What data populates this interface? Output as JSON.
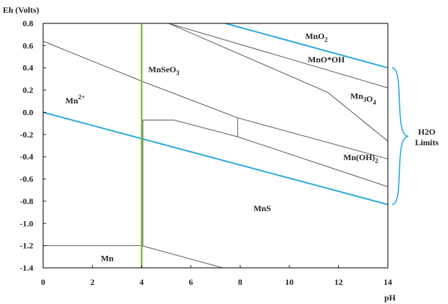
{
  "chart_data": {
    "type": "line",
    "title": "",
    "xlabel": "pH",
    "ylabel": "Eh (Volts)",
    "xlim": [
      0,
      14
    ],
    "ylim": [
      -1.4,
      0.8
    ],
    "x_ticks": [
      0,
      2,
      4,
      6,
      8,
      10,
      12,
      14
    ],
    "x_tick_labels": [
      "0",
      "2",
      "4",
      "6",
      "8",
      "10",
      "12",
      "14"
    ],
    "y_ticks": [
      0.8,
      0.6,
      0.4,
      0.2,
      0.0,
      -0.2,
      -0.4,
      -0.6,
      -0.8,
      -1.0,
      -1.2,
      -1.4
    ],
    "y_tick_labels": [
      "0.8",
      "0.6",
      "0.4",
      "0.2",
      "0.0",
      "-0.2",
      "-0.4",
      "-0.6",
      "-0.8",
      "-1.0",
      "-1.2",
      "-1.4"
    ],
    "grid": false,
    "colors": {
      "boundary": "#555555",
      "water_limit": "#29a8dc",
      "ph4_line": "#7cc242",
      "text": "#222222"
    },
    "water_limits": [
      {
        "x": [
          0,
          14
        ],
        "y": [
          0.0,
          -0.83
        ]
      },
      {
        "x": [
          7.4,
          14
        ],
        "y": [
          0.8,
          0.4
        ]
      }
    ],
    "vertical_marker": {
      "x": 4
    },
    "brace_label": [
      "H2O",
      "Limits"
    ],
    "boundaries": [
      {
        "x": [
          0,
          4,
          7.9,
          14
        ],
        "y": [
          0.64,
          0.28,
          -0.05,
          -0.42
        ]
      },
      {
        "x": [
          5.1,
          14
        ],
        "y": [
          0.8,
          0.22
        ]
      },
      {
        "x": [
          5.1,
          11.55,
          14
        ],
        "y": [
          0.8,
          0.18,
          -0.26
        ]
      },
      {
        "x": [
          4.05,
          5.3,
          7.9,
          14
        ],
        "y": [
          -0.07,
          -0.07,
          -0.22,
          -0.67
        ]
      },
      {
        "x": [
          7.9,
          7.9
        ],
        "y": [
          -0.05,
          -0.22
        ]
      },
      {
        "x": [
          4.05,
          4.05
        ],
        "y": [
          -0.07,
          -1.2
        ]
      },
      {
        "x": [
          0,
          4
        ],
        "y": [
          -1.2,
          -1.2
        ]
      },
      {
        "x": [
          4,
          7.3
        ],
        "y": [
          -1.2,
          -1.4
        ]
      }
    ],
    "region_labels": [
      {
        "text": "MnO",
        "sub": "2",
        "sup": "",
        "tail": "",
        "x": 11.1,
        "y": 0.66
      },
      {
        "text": "MnO*OH",
        "sub": "",
        "sup": "",
        "tail": "",
        "x": 11.5,
        "y": 0.45
      },
      {
        "text": "MnSeO",
        "sub": "3",
        "sup": "",
        "tail": "",
        "x": 4.9,
        "y": 0.36
      },
      {
        "text": "Mn",
        "sub": "",
        "sup": "2+",
        "tail": "",
        "x": 1.3,
        "y": 0.08
      },
      {
        "text": "Mn",
        "sub": "3",
        "sup": "",
        "tail": "O",
        "tail_sub": "4",
        "x": 13.0,
        "y": 0.12
      },
      {
        "text": "Mn(OH)",
        "sub": "2",
        "sup": "",
        "tail": "",
        "x": 12.9,
        "y": -0.43
      },
      {
        "text": "MnS",
        "sub": "",
        "sup": "",
        "tail": "",
        "x": 8.9,
        "y": -0.89
      },
      {
        "text": "Mn",
        "sub": "",
        "sup": "",
        "tail": "",
        "x": 2.6,
        "y": -1.34
      }
    ]
  }
}
